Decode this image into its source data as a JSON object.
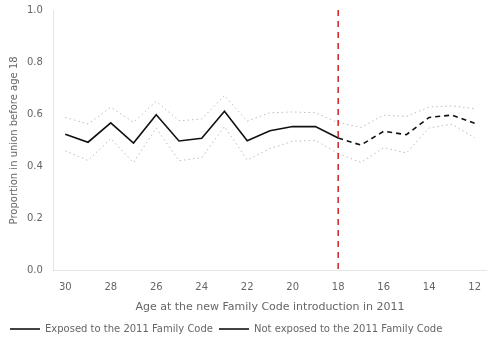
{
  "chart_data": {
    "type": "line",
    "xlabel": "Age at the new Family Code introduction in 2011",
    "ylabel": "Proportion in union before age 18",
    "xlim": [
      30.5,
      11.5
    ],
    "ylim": [
      0.0,
      1.0
    ],
    "xticks": [
      30,
      28,
      26,
      24,
      22,
      20,
      18,
      16,
      14,
      12
    ],
    "yticks": [
      {
        "value": 0.0,
        "label": "0.0"
      },
      0.2,
      0.4,
      0.6,
      0.8,
      {
        "value": 1.0,
        "label": "1.0"
      }
    ],
    "grid": false,
    "legend": "lower left",
    "series": [
      {
        "color": "#bbbbbb",
        "line_style": "dotted",
        "x": [
          30,
          29,
          28,
          27,
          26,
          25,
          24,
          23,
          22,
          21,
          20,
          19,
          18
        ],
        "values": [
          0.588,
          0.563,
          0.627,
          0.57,
          0.65,
          0.575,
          0.582,
          0.672,
          0.574,
          0.606,
          0.609,
          0.606,
          0.568
        ]
      },
      {
        "color": "#bbbbbb",
        "line_style": "dotted",
        "x": [
          30,
          29,
          28,
          27,
          26,
          25,
          24,
          23,
          22,
          21,
          20,
          19,
          18
        ],
        "values": [
          0.46,
          0.423,
          0.507,
          0.415,
          0.547,
          0.422,
          0.434,
          0.553,
          0.425,
          0.469,
          0.497,
          0.5,
          0.45
        ]
      },
      {
        "color": "#bbbbbb",
        "line_style": "dotted",
        "x": [
          18,
          17,
          16,
          15,
          14,
          13,
          12
        ],
        "values": [
          0.568,
          0.55,
          0.597,
          0.592,
          0.628,
          0.632,
          0.622
        ]
      },
      {
        "color": "#bbbbbb",
        "line_style": "dotted",
        "x": [
          18,
          17,
          16,
          15,
          14,
          13,
          12
        ],
        "values": [
          0.45,
          0.415,
          0.472,
          0.452,
          0.548,
          0.562,
          0.51
        ]
      },
      {
        "name": "Exposed to the 2011 Family Code",
        "color": "#111111",
        "line_style": "dashed",
        "x": [
          18,
          17,
          16,
          15,
          14,
          13,
          12
        ],
        "values": [
          0.509,
          0.482,
          0.535,
          0.522,
          0.588,
          0.597,
          0.566
        ]
      },
      {
        "name": "Not exposed to the 2011 Family Code",
        "color": "#111111",
        "line_style": "solid",
        "x": [
          30,
          29,
          28,
          27,
          26,
          25,
          24,
          23,
          22,
          21,
          20,
          19,
          18
        ],
        "values": [
          0.524,
          0.493,
          0.567,
          0.49,
          0.598,
          0.498,
          0.508,
          0.612,
          0.499,
          0.537,
          0.553,
          0.553,
          0.509
        ]
      }
    ],
    "annotations": [
      {
        "type": "vline",
        "x": 18,
        "color": "#cc2222",
        "line_style": "dashed"
      }
    ]
  }
}
